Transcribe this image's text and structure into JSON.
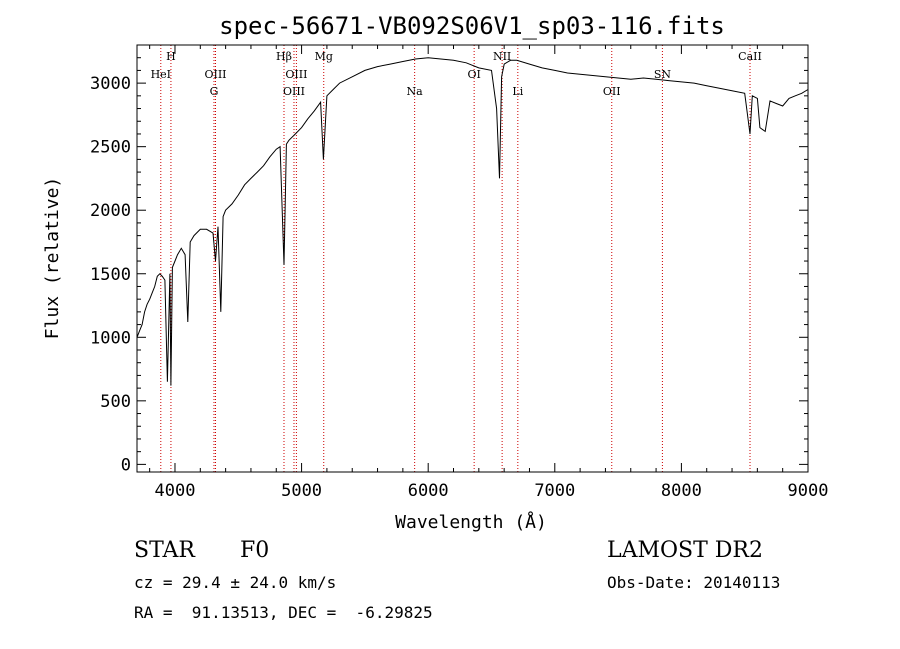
{
  "chart_data": {
    "type": "line",
    "title": "spec-56671-VB092S06V1_sp03-116.fits",
    "xlabel": "Wavelength (Å)",
    "ylabel": "Flux (relative)",
    "xlim": [
      3700,
      9000
    ],
    "ylim": [
      -60,
      3300
    ],
    "xticks": [
      4000,
      5000,
      6000,
      7000,
      8000,
      9000
    ],
    "yticks": [
      0,
      500,
      1000,
      1500,
      2000,
      2500,
      3000
    ],
    "grid": false,
    "series": [
      {
        "x": [
          3700,
          3720,
          3740,
          3760,
          3780,
          3800,
          3820,
          3840,
          3860,
          3880,
          3900,
          3920,
          3940,
          3960,
          3968,
          3980,
          4000,
          4020,
          4050,
          4080,
          4101,
          4120,
          4150,
          4200,
          4250,
          4300,
          4320,
          4340,
          4362,
          4380,
          4400,
          4450,
          4500,
          4550,
          4600,
          4650,
          4700,
          4750,
          4800,
          4830,
          4861,
          4880,
          4900,
          4950,
          5000,
          5050,
          5100,
          5150,
          5172,
          5200,
          5250,
          5300,
          5400,
          5500,
          5600,
          5700,
          5800,
          5900,
          6000,
          6100,
          6200,
          6300,
          6400,
          6500,
          6540,
          6563,
          6580,
          6600,
          6650,
          6700,
          6800,
          6900,
          7000,
          7100,
          7200,
          7300,
          7400,
          7500,
          7600,
          7700,
          7800,
          7900,
          8000,
          8100,
          8200,
          8300,
          8400,
          8500,
          8542,
          8560,
          8600,
          8620,
          8662,
          8700,
          8750,
          8800,
          8850,
          8900,
          8950,
          9000
        ],
        "y": [
          1000,
          1050,
          1100,
          1200,
          1260,
          1300,
          1350,
          1400,
          1480,
          1500,
          1480,
          1450,
          650,
          1500,
          620,
          1550,
          1600,
          1650,
          1700,
          1650,
          1120,
          1750,
          1800,
          1850,
          1850,
          1820,
          1600,
          1870,
          1200,
          1950,
          2000,
          2050,
          2120,
          2200,
          2250,
          2300,
          2350,
          2420,
          2480,
          2500,
          1570,
          2520,
          2550,
          2600,
          2650,
          2720,
          2780,
          2850,
          2400,
          2900,
          2950,
          3000,
          3050,
          3100,
          3130,
          3150,
          3170,
          3190,
          3200,
          3190,
          3180,
          3160,
          3120,
          3100,
          2800,
          2250,
          3050,
          3150,
          3180,
          3180,
          3150,
          3120,
          3100,
          3080,
          3070,
          3060,
          3050,
          3040,
          3030,
          3040,
          3030,
          3020,
          3010,
          3000,
          2980,
          2960,
          2940,
          2920,
          2600,
          2900,
          2880,
          2650,
          2620,
          2860,
          2840,
          2820,
          2880,
          2900,
          2920,
          2950
        ]
      }
    ],
    "lines": [
      {
        "label": "HeI",
        "x": 3888,
        "row": 1
      },
      {
        "label": "H",
        "x": 3968,
        "row": 0
      },
      {
        "label": "OIII",
        "x": 4320,
        "row": 1
      },
      {
        "label": "G",
        "x": 4308,
        "row": 2
      },
      {
        "label": "Hβ",
        "x": 4861,
        "row": 0
      },
      {
        "label": "OIII",
        "x": 4959,
        "row": 1
      },
      {
        "label": "OIII",
        "x": 4940,
        "row": 2
      },
      {
        "label": "Mg",
        "x": 5175,
        "row": 0
      },
      {
        "label": "Na",
        "x": 5893,
        "row": 2
      },
      {
        "label": "OI",
        "x": 6363,
        "row": 1
      },
      {
        "label": "NII",
        "x": 6584,
        "row": 0
      },
      {
        "label": "Li",
        "x": 6708,
        "row": 2
      },
      {
        "label": "OII",
        "x": 7450,
        "row": 2
      },
      {
        "label": "SN",
        "x": 7850,
        "row": 1
      },
      {
        "label": "CaII",
        "x": 8542,
        "row": 0
      }
    ]
  },
  "footer": {
    "object_class": "STAR",
    "subclass": "F0",
    "redshift_line": "cz = 29.4 ± 24.0 km/s",
    "coords_line": "RA =  91.13513, DEC =  -6.29825",
    "survey": "LAMOST DR2",
    "obs_date_line": "Obs-Date: 20140113"
  },
  "colors": {
    "spectrum": "#000000",
    "line_marker": "#cc0000",
    "axes": "#000000"
  }
}
